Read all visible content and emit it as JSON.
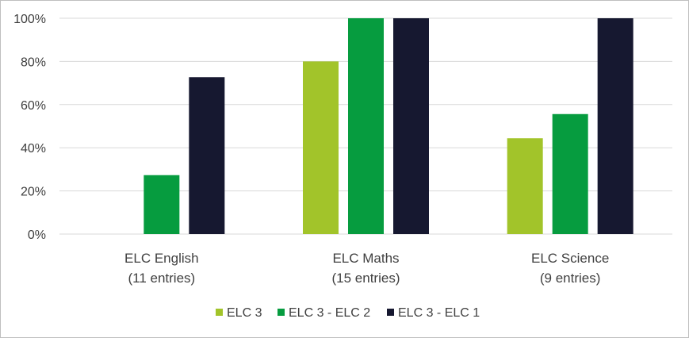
{
  "chart_data": {
    "type": "bar",
    "title": "",
    "xlabel": "",
    "ylabel": "",
    "categories": [
      [
        "ELC English",
        "(11 entries)"
      ],
      [
        "ELC Maths",
        "(15 entries)"
      ],
      [
        "ELC Science",
        "(9 entries)"
      ]
    ],
    "series": [
      {
        "name": "ELC 3",
        "color": "#a2c42a",
        "values": [
          0,
          80,
          44.4
        ]
      },
      {
        "name": "ELC 3 - ELC 2",
        "color": "#069c3f",
        "values": [
          27.3,
          100,
          55.6
        ]
      },
      {
        "name": "ELC 3 - ELC 1",
        "color": "#161830",
        "values": [
          72.7,
          100,
          100
        ]
      }
    ],
    "ylim": [
      0,
      100
    ],
    "yticks": [
      "0%",
      "20%",
      "40%",
      "60%",
      "80%",
      "100%"
    ],
    "grid": true,
    "legend": "bottom"
  }
}
